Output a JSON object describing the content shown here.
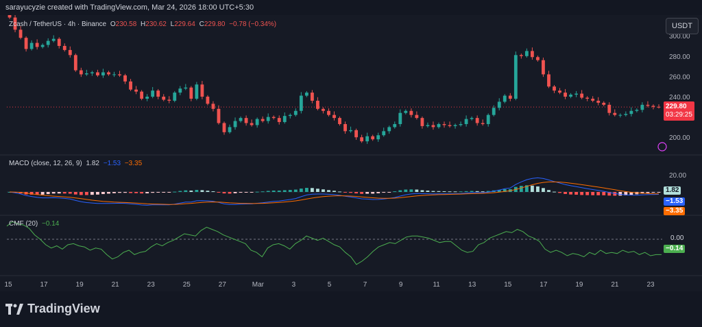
{
  "header": {
    "credit": "sarayucyzie created with TradingView.com, Mar 24, 2026 18:00 UTC+5:30",
    "currency_button": "USDT"
  },
  "legend": {
    "symbol": "Zcash / TetherUS · 4h · Binance",
    "o_label": "O",
    "o_value": "230.58",
    "h_label": "H",
    "h_value": "230.62",
    "l_label": "L",
    "l_value": "229.64",
    "c_label": "C",
    "c_value": "229.80",
    "change": "−0.78 (−0.34%)"
  },
  "macd_legend": {
    "label": "MACD (close, 12, 26, 9)",
    "hist": "1.82",
    "macd": "−1.53",
    "signal": "−3.35"
  },
  "cmf_legend": {
    "label": "CMF (20)",
    "value": "−0.14"
  },
  "price_tag": {
    "price": "229.80",
    "countdown": "03:29:25"
  },
  "macd_tags": {
    "hist": "1.82",
    "macd": "−1.53",
    "signal": "−3.35"
  },
  "cmf_tags": {
    "zero": "0.00",
    "value": "−0.14"
  },
  "brand": {
    "name": "TradingView"
  },
  "colors": {
    "up": "#26a69a",
    "down": "#ef5350",
    "macd": "#2962ff",
    "signal": "#ff6d00",
    "cmf": "#4caf50",
    "hist_up": "#26a69a",
    "hist_up_light": "#b2dfdb",
    "hist_down": "#ff5252",
    "hist_down_light": "#ffcdd2"
  },
  "chart_data": [
    {
      "type": "candlestick",
      "title": "Zcash / TetherUS · 4h · Binance",
      "x_ticks": [
        "15",
        "17",
        "19",
        "21",
        "23",
        "25",
        "27",
        "Mar",
        "3",
        "5",
        "7",
        "9",
        "11",
        "13",
        "15",
        "17",
        "19",
        "21",
        "23"
      ],
      "y_ticks": [
        200,
        220,
        240,
        260,
        280,
        300
      ],
      "ylim": [
        188,
        315
      ],
      "closes": [
        318,
        306,
        298,
        287,
        293,
        289,
        291,
        295,
        297,
        290,
        286,
        281,
        266,
        262,
        263,
        264,
        261,
        264,
        262,
        262,
        261,
        255,
        247,
        245,
        238,
        240,
        246,
        240,
        237,
        236,
        244,
        248,
        249,
        238,
        252,
        240,
        233,
        228,
        214,
        205,
        210,
        216,
        219,
        214,
        212,
        218,
        216,
        220,
        219,
        215,
        221,
        222,
        226,
        241,
        244,
        236,
        228,
        226,
        222,
        219,
        213,
        206,
        207,
        200,
        196,
        201,
        198,
        202,
        206,
        210,
        213,
        224,
        226,
        222,
        219,
        211,
        212,
        210,
        213,
        212,
        211,
        212,
        213,
        218,
        219,
        214,
        213,
        222,
        229,
        235,
        241,
        238,
        281,
        280,
        285,
        279,
        276,
        262,
        250,
        246,
        244,
        240,
        242,
        243,
        239,
        238,
        236,
        234,
        232,
        224,
        222,
        222,
        223,
        226,
        227,
        232,
        231,
        230,
        229.8
      ],
      "open": 230.58,
      "high": 230.62,
      "low": 229.64,
      "close": 229.8,
      "change": -0.78,
      "change_pct": -0.34
    },
    {
      "type": "bar+line",
      "title": "MACD (close, 12, 26, 9)",
      "y_ticks": [
        20.0
      ],
      "last": {
        "histogram": 1.82,
        "macd": -1.53,
        "signal": -3.35
      }
    },
    {
      "type": "line",
      "title": "CMF (20)",
      "y_ticks": [
        0.0
      ],
      "last": -0.14,
      "values": [
        0.12,
        0.16,
        0.14,
        0.13,
        0.1,
        0.04,
        0.0,
        -0.05,
        -0.08,
        -0.06,
        -0.09,
        -0.05,
        -0.04,
        -0.06,
        -0.07,
        -0.1,
        -0.08,
        -0.09,
        -0.14,
        -0.18,
        -0.16,
        -0.12,
        -0.1,
        -0.14,
        -0.12,
        -0.11,
        -0.07,
        -0.04,
        -0.06,
        -0.03,
        -0.01,
        0.02,
        0.05,
        0.04,
        0.03,
        0.08,
        0.11,
        0.09,
        0.07,
        0.04,
        0.02,
        0.0,
        -0.02,
        -0.04,
        -0.1,
        -0.12,
        -0.16,
        -0.08,
        -0.05,
        -0.04,
        -0.06,
        -0.09,
        -0.04,
        -0.01,
        0.03,
        0.01,
        -0.01,
        0.01,
        -0.02,
        -0.05,
        -0.07,
        -0.12,
        -0.16,
        -0.23,
        -0.2,
        -0.16,
        -0.11,
        -0.07,
        -0.05,
        -0.03,
        -0.04,
        -0.01,
        0.02,
        0.03,
        0.03,
        0.02,
        0.01,
        -0.01,
        -0.03,
        -0.02,
        -0.02,
        -0.06,
        -0.1,
        -0.12,
        -0.11,
        -0.05,
        -0.03,
        0.01,
        0.03,
        0.05,
        0.07,
        0.06,
        0.09,
        0.07,
        0.03,
        0.01,
        -0.02,
        -0.09,
        -0.12,
        -0.1,
        -0.12,
        -0.15,
        -0.13,
        -0.14,
        -0.16,
        -0.12,
        -0.14,
        -0.1,
        -0.13,
        -0.12,
        -0.13,
        -0.1,
        -0.12,
        -0.11,
        -0.14,
        -0.12,
        -0.15,
        -0.14,
        -0.14
      ]
    }
  ]
}
